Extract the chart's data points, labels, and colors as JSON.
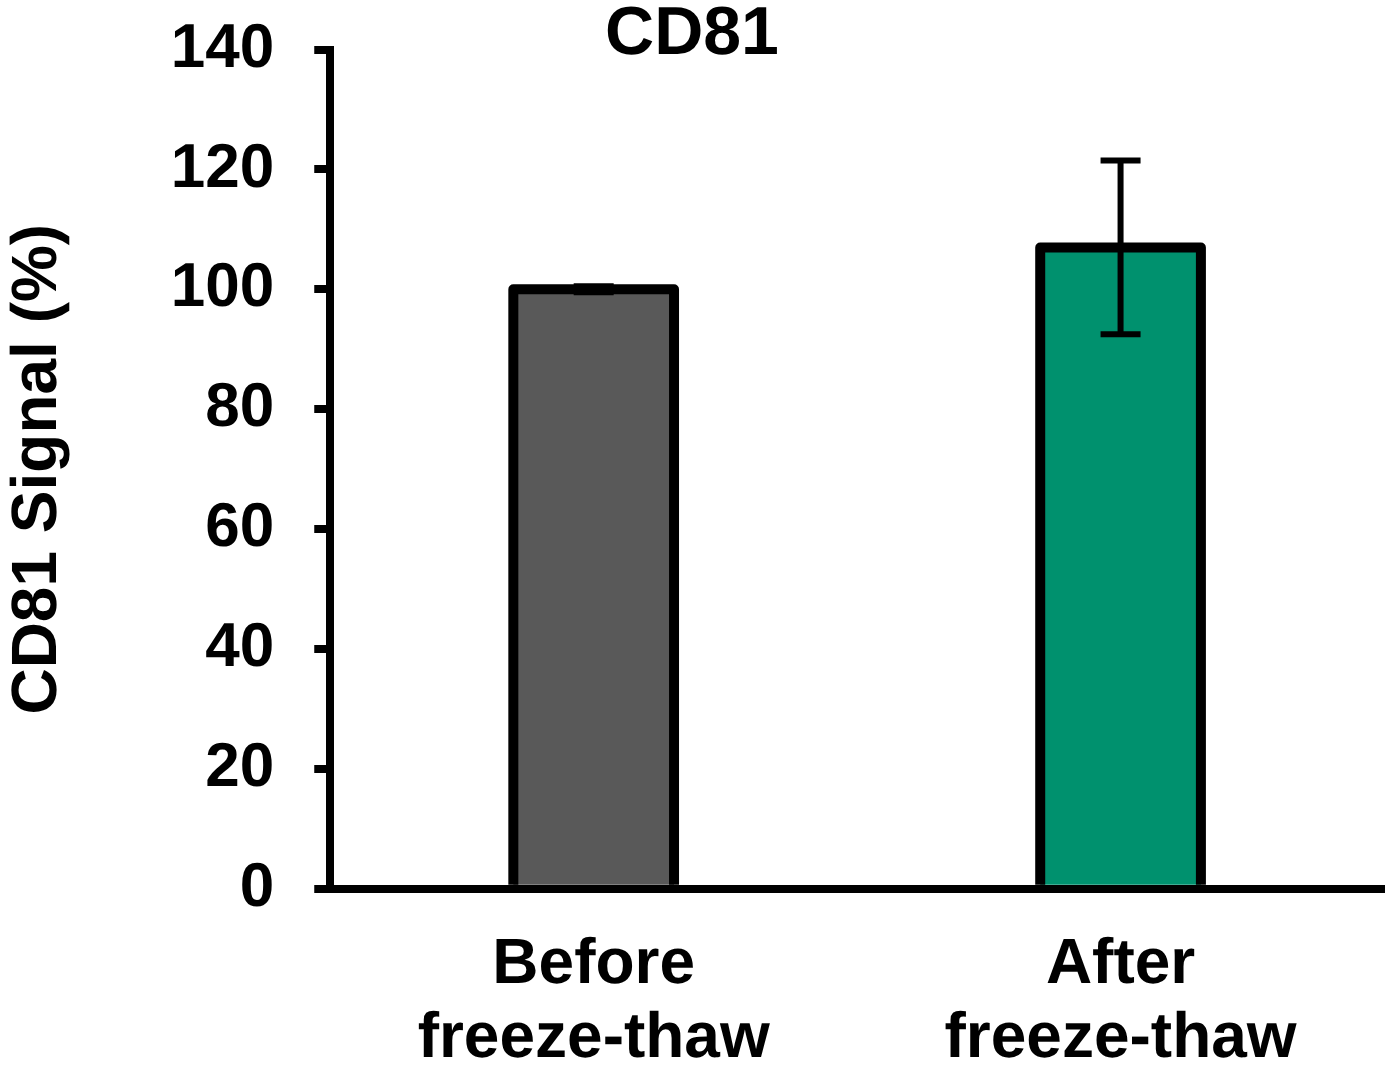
{
  "chart_data": {
    "type": "bar",
    "title": "CD81",
    "ylabel": "CD81 Signal (%)",
    "categories": [
      "Before freeze-thaw",
      "After freeze-thaw"
    ],
    "values": [
      100,
      107
    ],
    "colors": [
      "#595959",
      "#00916e"
    ],
    "errors": [
      0.5,
      14.5
    ],
    "ylim": [
      0,
      140
    ],
    "yticks": [
      0,
      20,
      40,
      60,
      80,
      100,
      120,
      140
    ]
  }
}
